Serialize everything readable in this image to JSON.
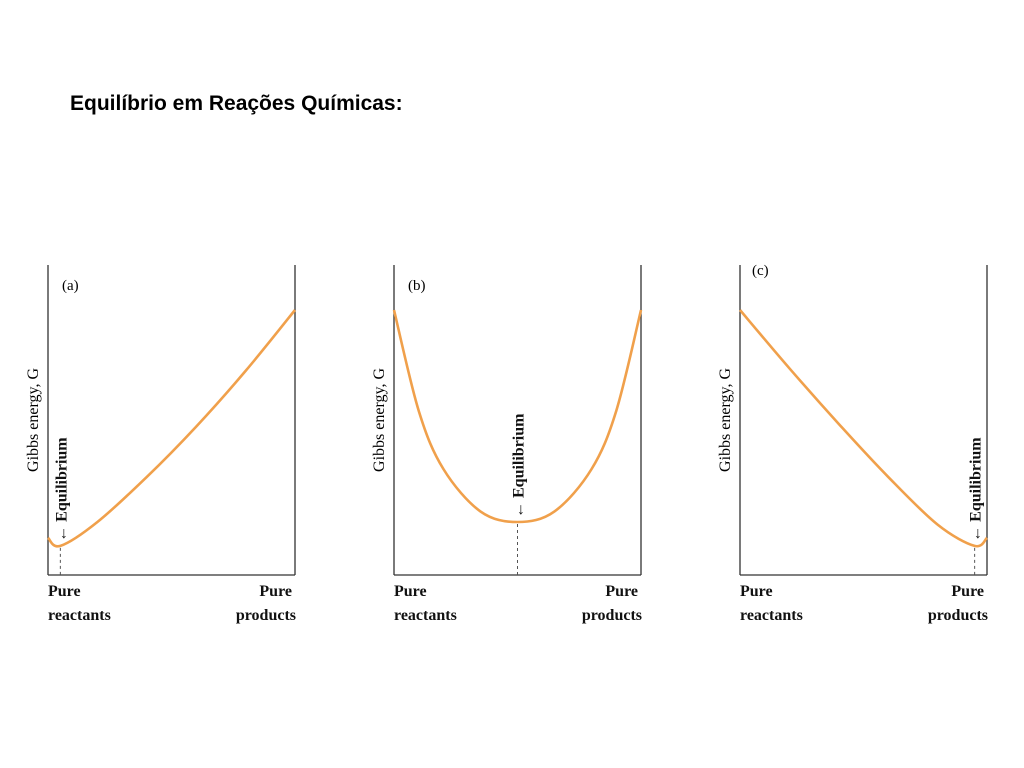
{
  "title": "Equilíbrio em Reações Químicas:",
  "chart_data": [
    {
      "type": "line",
      "panel_label": "(a)",
      "ylabel": "Gibbs energy, G",
      "xtick_left": [
        "Pure",
        "reactants"
      ],
      "xtick_right": [
        "Pure",
        "products"
      ],
      "annotation": "← Equilibrium",
      "equilibrium_x": 0.05,
      "series": [
        {
          "x": [
            0,
            0.05,
            0.2,
            0.4,
            0.6,
            0.8,
            1.0
          ],
          "values": [
            0.14,
            0.11,
            0.2,
            0.37,
            0.56,
            0.77,
            1.0
          ]
        }
      ]
    },
    {
      "type": "line",
      "panel_label": "(b)",
      "ylabel": "Gibbs energy, G",
      "xtick_left": [
        "Pure",
        "reactants"
      ],
      "xtick_right": [
        "Pure",
        "products"
      ],
      "annotation": "← Equilibrium",
      "equilibrium_x": 0.5,
      "series": [
        {
          "x": [
            0,
            0.1,
            0.2,
            0.35,
            0.5,
            0.65,
            0.8,
            0.9,
            1.0
          ],
          "values": [
            1.0,
            0.62,
            0.4,
            0.24,
            0.2,
            0.24,
            0.4,
            0.62,
            1.0
          ]
        }
      ]
    },
    {
      "type": "line",
      "panel_label": "(c)",
      "ylabel": "Gibbs energy, G",
      "xtick_left": [
        "Pure",
        "reactants"
      ],
      "xtick_right": [
        "Pure",
        "products"
      ],
      "annotation": "← Equilibrium",
      "equilibrium_x": 0.95,
      "series": [
        {
          "x": [
            0,
            0.2,
            0.4,
            0.6,
            0.8,
            0.95,
            1.0
          ],
          "values": [
            1.0,
            0.78,
            0.57,
            0.37,
            0.19,
            0.11,
            0.14
          ]
        }
      ]
    }
  ]
}
